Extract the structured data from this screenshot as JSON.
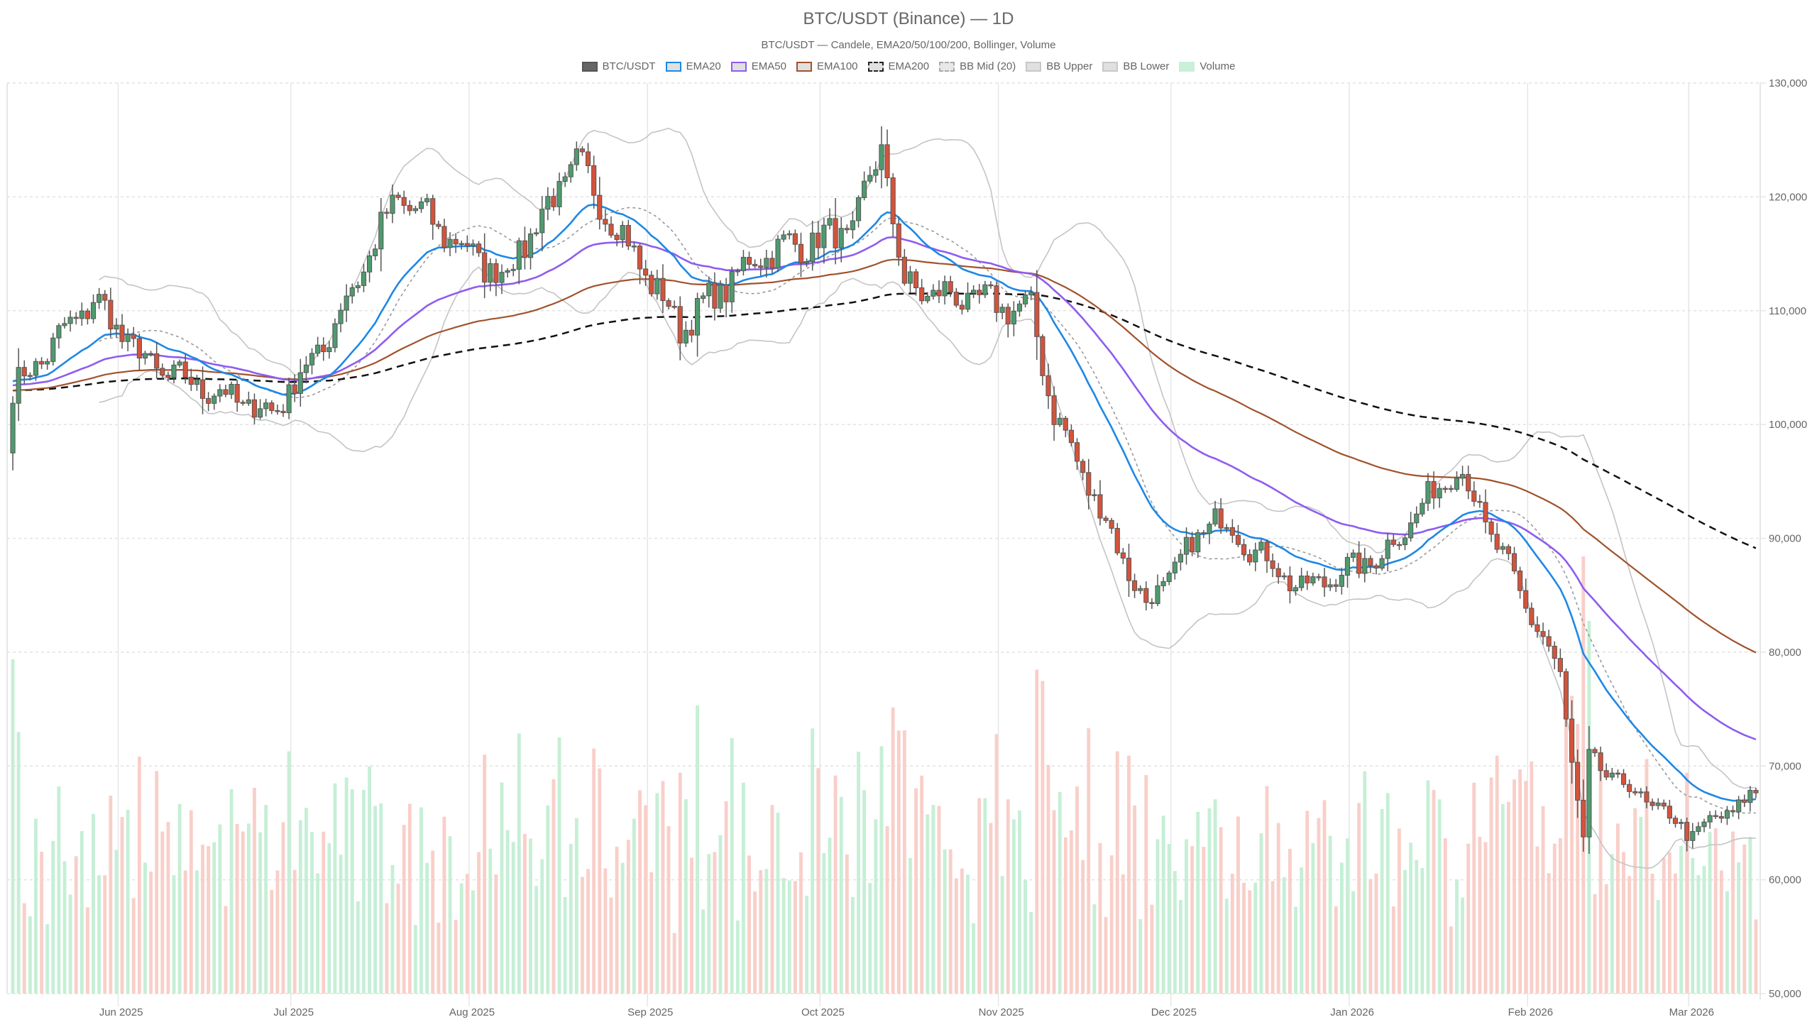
{
  "header": {
    "title": "BTC/USDT (Binance) — 1D",
    "subtitle": "BTC/USDT — Candele, EMA20/50/100/200, Bollinger, Volume"
  },
  "legend": [
    {
      "label": "BTC/USDT",
      "fill": "#666666",
      "border": "#555555",
      "style": "solid"
    },
    {
      "label": "EMA20",
      "fill": "#e0e0e0",
      "border": "#1e88e5",
      "style": "solid"
    },
    {
      "label": "EMA50",
      "fill": "#e0e0e0",
      "border": "#8e5cf0",
      "style": "solid"
    },
    {
      "label": "EMA100",
      "fill": "#e0e0e0",
      "border": "#a0522d",
      "style": "solid"
    },
    {
      "label": "EMA200",
      "fill": "#e0e0e0",
      "border": "#222222",
      "style": "dashed"
    },
    {
      "label": "BB Mid (20)",
      "fill": "#e8e8e8",
      "border": "#aaaaaa",
      "style": "dashed"
    },
    {
      "label": "BB Upper",
      "fill": "#e0e0e0",
      "border": "#c8c8c8",
      "style": "solid"
    },
    {
      "label": "BB Lower",
      "fill": "#e0e0e0",
      "border": "#c8c8c8",
      "style": "solid"
    },
    {
      "label": "Volume",
      "fill": "#c9f0d9",
      "border": "#c9f0d9",
      "style": "solid"
    }
  ],
  "colors": {
    "up": "#4f9a6e",
    "down": "#d4533b",
    "wick": "#555555",
    "vol_up": "#c6efd6",
    "vol_down": "#f9cfc9",
    "ema20": "#1e88e5",
    "ema50": "#8e5cf0",
    "ema100": "#a0522d",
    "ema200": "#111111",
    "bb_band": "#c4c4c4",
    "bb_mid": "#9a9a9a",
    "grid": "#e6e6e6"
  },
  "chart_data": {
    "type": "candlestick",
    "title": "BTC/USDT (Binance) — 1D",
    "subtitle": "BTC/USDT — Candele, EMA20/50/100/200, Bollinger, Volume",
    "xlabel": "",
    "ylabel": "",
    "ylim": [
      50000,
      130000
    ],
    "y_ticks": [
      "50,000",
      "60,000",
      "70,000",
      "80,000",
      "90,000",
      "100,000",
      "110,000",
      "120,000",
      "130,000"
    ],
    "x_ticks": [
      "Jun 2025",
      "Jul 2025",
      "Aug 2025",
      "Sep 2025",
      "Oct 2025",
      "Nov 2025",
      "Dec 2025",
      "Jan 2026",
      "Feb 2026",
      "Mar 2026"
    ],
    "x_range": [
      "2025-05-08",
      "2026-03-07"
    ],
    "legend_position": "top",
    "grid": true,
    "series_names": [
      "BTC/USDT",
      "EMA20",
      "EMA50",
      "EMA100",
      "EMA200",
      "BB Mid (20)",
      "BB Upper",
      "BB Lower",
      "Volume"
    ],
    "close_path_monthly": [
      {
        "date": "2025-05-08",
        "close": 103000
      },
      {
        "date": "2025-05-22",
        "close": 111000
      },
      {
        "date": "2025-06-01",
        "close": 105000
      },
      {
        "date": "2025-06-22",
        "close": 101000
      },
      {
        "date": "2025-07-01",
        "close": 107000
      },
      {
        "date": "2025-07-14",
        "close": 120000
      },
      {
        "date": "2025-08-01",
        "close": 113000
      },
      {
        "date": "2025-08-14",
        "close": 123000
      },
      {
        "date": "2025-09-01",
        "close": 108500
      },
      {
        "date": "2025-09-15",
        "close": 115000
      },
      {
        "date": "2025-10-01",
        "close": 117000
      },
      {
        "date": "2025-10-06",
        "close": 124500
      },
      {
        "date": "2025-10-10",
        "close": 112000
      },
      {
        "date": "2025-11-01",
        "close": 110000
      },
      {
        "date": "2025-11-05",
        "close": 101000
      },
      {
        "date": "2025-11-21",
        "close": 84000
      },
      {
        "date": "2025-12-03",
        "close": 92000
      },
      {
        "date": "2025-12-18",
        "close": 85500
      },
      {
        "date": "2026-01-01",
        "close": 88500
      },
      {
        "date": "2026-01-14",
        "close": 96500
      },
      {
        "date": "2026-02-01",
        "close": 78000
      },
      {
        "date": "2026-02-05",
        "close": 63000
      },
      {
        "date": "2026-02-06",
        "close": 70500
      },
      {
        "date": "2026-02-24",
        "close": 64000
      },
      {
        "date": "2026-03-07",
        "close": 67500
      }
    ],
    "ema_end_values": {
      "EMA20": 68500,
      "EMA50": 74500,
      "EMA100": 82200,
      "EMA200": 91000
    },
    "volume_note": "Volume bars overlaid on lower portion, scaled to plot; largest spike early Feb 2026"
  },
  "axis": {
    "y_labels": [
      "130,000",
      "120,000",
      "110,000",
      "100,000",
      "90,000",
      "80,000",
      "70,000",
      "60,000",
      "50,000"
    ],
    "x_labels": [
      "Jun 2025",
      "Jul 2025",
      "Aug 2025",
      "Sep 2025",
      "Oct 2025",
      "Nov 2025",
      "Dec 2025",
      "Jan 2026",
      "Feb 2026",
      "Mar 2026"
    ]
  }
}
